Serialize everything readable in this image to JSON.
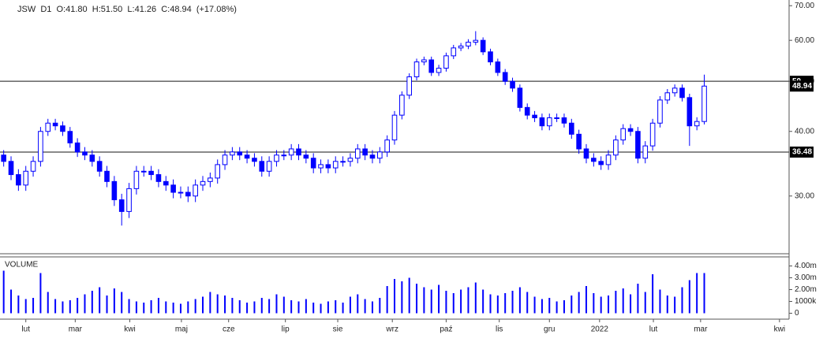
{
  "chart_data": [
    {
      "type": "candlestick",
      "title": "JSW  D1  O:41.80  H:51.50  L:41.26  C:48.94  (+17.08%)",
      "color": "#0000ff",
      "up_fill": "#ffffff",
      "log": true,
      "x": [
        0,
        1,
        2,
        3,
        4,
        5,
        6,
        7,
        8,
        9,
        10,
        11,
        12,
        13,
        14,
        15,
        16,
        17,
        18,
        19,
        20,
        21,
        22,
        23,
        24,
        25,
        26,
        27,
        28,
        29,
        30,
        31,
        32,
        33,
        34,
        35,
        36,
        37,
        38,
        39,
        40,
        41,
        42,
        43,
        44,
        45,
        46,
        47,
        48,
        49,
        50,
        51,
        52,
        53,
        54,
        55,
        56,
        57,
        58,
        59,
        60,
        61,
        62,
        63,
        64,
        65,
        66,
        67,
        68,
        69,
        70,
        71,
        72,
        73,
        74,
        75,
        76,
        77,
        78,
        79,
        80,
        81,
        82,
        83,
        84,
        85,
        86,
        87,
        88,
        89,
        90,
        91,
        92,
        93,
        94,
        95
      ],
      "open": [
        36,
        35,
        33,
        31.5,
        33.5,
        35,
        40,
        41.5,
        41,
        40,
        38,
        36.5,
        36,
        35,
        33.5,
        32,
        29.5,
        28,
        31,
        33.5,
        33.5,
        33,
        32,
        31.5,
        30.5,
        30.5,
        30,
        31.5,
        32,
        32.5,
        34.5,
        36,
        36.5,
        36,
        35.5,
        35,
        33.5,
        35,
        36,
        36,
        37,
        36,
        35.5,
        34,
        34.5,
        34,
        35,
        35,
        35.5,
        37,
        36,
        35.5,
        36.5,
        38.5,
        43,
        47,
        51,
        54.5,
        55,
        52,
        53,
        56,
        58,
        58.5,
        59.5,
        60,
        57,
        54.5,
        52,
        50,
        48.5,
        44.5,
        43,
        42.5,
        41,
        42.5,
        42.5,
        41.5,
        39.5,
        37,
        35.5,
        35,
        34.5,
        36,
        38.5,
        40.5,
        40,
        35.5,
        37.5,
        41.5,
        46,
        47.5,
        48.5,
        46.5,
        41,
        41.8
      ],
      "high": [
        36.8,
        35.8,
        33.8,
        34.3,
        35.8,
        40.8,
        42.3,
        42.3,
        41.8,
        40.8,
        38.8,
        37.3,
        36.8,
        35.8,
        34.3,
        32.8,
        30.3,
        31.8,
        34.3,
        34.3,
        34.3,
        33.8,
        32.8,
        32.3,
        31.3,
        31.3,
        32.3,
        32.8,
        33.3,
        35.3,
        36.8,
        37.3,
        37.3,
        36.8,
        36.3,
        35.8,
        35.8,
        36.8,
        36.8,
        37.8,
        37.8,
        36.8,
        36.3,
        35.3,
        35.3,
        35.8,
        35.8,
        36.3,
        37.8,
        37.8,
        36.8,
        37.3,
        39.3,
        43.8,
        47.8,
        51.8,
        55.3,
        55.8,
        55.8,
        53.8,
        56.8,
        58.8,
        59.3,
        60.3,
        62.5,
        60.8,
        57.8,
        55.3,
        52.8,
        50.8,
        49.3,
        45.3,
        43.8,
        43.3,
        43.3,
        43.3,
        43.3,
        42.3,
        40.3,
        37.8,
        36.3,
        35.8,
        36.8,
        39.3,
        41.3,
        41.3,
        40.8,
        38.3,
        42.3,
        46.8,
        48.3,
        49.3,
        49.3,
        47.3,
        42.6,
        51.5
      ],
      "low": [
        34.2,
        32.2,
        30.7,
        30.7,
        32.7,
        34.2,
        39.2,
        40.2,
        39.2,
        37.2,
        35.7,
        35.2,
        34.2,
        32.7,
        31.2,
        28.7,
        26.3,
        27.2,
        30.2,
        32.7,
        32.2,
        31.2,
        30.7,
        29.7,
        29.7,
        29.2,
        29.2,
        30.7,
        31.2,
        31.7,
        33.7,
        35.2,
        35.2,
        34.7,
        34.2,
        32.7,
        32.7,
        34.2,
        35.2,
        35.2,
        35.2,
        34.7,
        33.2,
        33.2,
        33.2,
        33.2,
        34.2,
        34.2,
        34.7,
        35.2,
        34.7,
        34.7,
        35.7,
        37.7,
        42.2,
        46.2,
        50.2,
        53.7,
        51.2,
        51.2,
        52.2,
        55.2,
        57.2,
        57.7,
        58.7,
        56.2,
        53.7,
        51.2,
        49.2,
        47.7,
        43.7,
        42.2,
        41.7,
        40.2,
        40.2,
        41.7,
        40.7,
        38.7,
        36.2,
        34.7,
        34.2,
        33.7,
        33.7,
        35.2,
        37.7,
        39.2,
        34.7,
        34.7,
        36.7,
        40.7,
        45.2,
        46.7,
        45.7,
        37.5,
        40.2,
        41.26
      ],
      "close": [
        35,
        33,
        31.5,
        33.5,
        35,
        40,
        41.5,
        41,
        40,
        38,
        36.5,
        36,
        35,
        33.5,
        32,
        29.5,
        28,
        31,
        33.5,
        33.5,
        33,
        32,
        31.5,
        30.5,
        30.5,
        30,
        31.5,
        32,
        32.5,
        34.5,
        36,
        36.5,
        36,
        35.5,
        35,
        33.5,
        35,
        36,
        36,
        37,
        36,
        35.5,
        34,
        34.5,
        34,
        35,
        35,
        35.5,
        37,
        36,
        35.5,
        36.5,
        38.5,
        43,
        47,
        51,
        54.5,
        55,
        52,
        53,
        56,
        58,
        58.5,
        59.5,
        60,
        57,
        54.5,
        52,
        50,
        48.5,
        44.5,
        43,
        42.5,
        41,
        42.5,
        42.5,
        41.5,
        39.5,
        37,
        35.5,
        35,
        34.5,
        36,
        38.5,
        40.5,
        40,
        35.5,
        37.5,
        41.5,
        46,
        47.5,
        48.5,
        46.5,
        41,
        41.8,
        48.94
      ],
      "xlim": [
        -0.5,
        106.5
      ],
      "ylim": [
        23.2,
        71.8
      ],
      "yticks": [
        {
          "value": 70,
          "label": "70.00"
        },
        {
          "value": 60,
          "label": "60.00"
        },
        {
          "value": 50,
          "label": "50.00"
        },
        {
          "value": 40,
          "label": "40.00"
        },
        {
          "value": 30,
          "label": "30.00"
        }
      ],
      "levels": [
        50,
        36.48
      ],
      "last_price": 48.94
    },
    {
      "type": "bar",
      "title": "VOLUME",
      "color": "#0000ff",
      "values": [
        3600000,
        2000000,
        1500000,
        1200000,
        1300000,
        3400000,
        1800000,
        1200000,
        1000000,
        1100000,
        1300000,
        1600000,
        1900000,
        2200000,
        1500000,
        2100000,
        1800000,
        1200000,
        1000000,
        900000,
        1100000,
        1300000,
        1000000,
        900000,
        800000,
        1000000,
        1200000,
        1400000,
        1800000,
        1600000,
        1500000,
        1300000,
        1100000,
        900000,
        1000000,
        1300000,
        1200000,
        1600000,
        1400000,
        1100000,
        1000000,
        1200000,
        900000,
        800000,
        1000000,
        1100000,
        900000,
        1400000,
        1600000,
        1200000,
        1000000,
        1300000,
        2300000,
        2900000,
        2700000,
        3000000,
        2500000,
        2200000,
        2000000,
        2400000,
        1900000,
        1700000,
        2000000,
        2200000,
        2600000,
        2000000,
        1600000,
        1500000,
        1700000,
        1900000,
        2200000,
        1800000,
        1400000,
        1200000,
        1300000,
        1000000,
        1100000,
        1500000,
        1800000,
        2300000,
        1700000,
        1400000,
        1500000,
        1900000,
        2100000,
        1600000,
        2500000,
        1800000,
        3300000,
        2000000,
        1500000,
        1400000,
        2200000,
        2800000,
        3400000,
        3400000
      ],
      "ylim": [
        -500000,
        4700000
      ],
      "yticks": [
        {
          "value": 4000000,
          "label": "4.00m"
        },
        {
          "value": 3000000,
          "label": "3.00m"
        },
        {
          "value": 2000000,
          "label": "2.00m"
        },
        {
          "value": 1000000,
          "label": "1000k"
        },
        0
      ],
      "xticks": [
        {
          "value": 3.0,
          "label": "lut"
        },
        {
          "value": 9.7,
          "label": "mar"
        },
        {
          "value": 17.1,
          "label": "kwi"
        },
        {
          "value": 24.1,
          "label": "maj"
        },
        {
          "value": 30.5,
          "label": "cze"
        },
        {
          "value": 38.2,
          "label": "lip"
        },
        {
          "value": 45.3,
          "label": "sie"
        },
        {
          "value": 52.7,
          "label": "wrz"
        },
        {
          "value": 60.0,
          "label": "paź"
        },
        {
          "value": 67.2,
          "label": "lis"
        },
        {
          "value": 74.0,
          "label": "gru"
        },
        {
          "value": 80.8,
          "label": "2022"
        },
        {
          "value": 88.1,
          "label": "lut"
        },
        {
          "value": 94.5,
          "label": "mar"
        },
        {
          "value": 105.2,
          "label": "kwi"
        }
      ]
    }
  ]
}
